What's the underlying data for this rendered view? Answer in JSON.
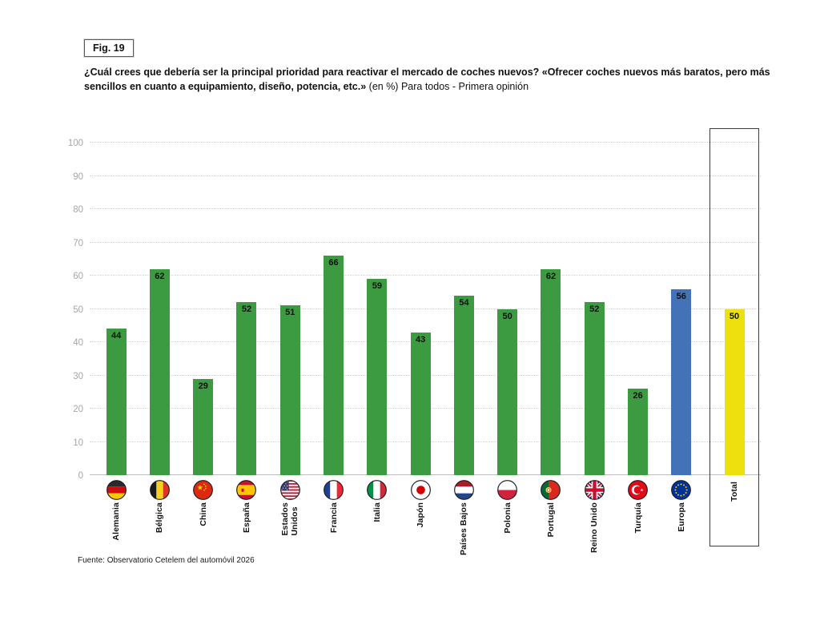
{
  "figure_label": "Fig. 19",
  "title_bold": "¿Cuál crees que debería ser la principal prioridad para reactivar el mercado de coches nuevos? «Ofrecer coches nuevos más baratos, pero más sencillos en cuanto a equipamiento, diseño, potencia, etc.»",
  "title_rest": "(en %) Para todos - Primera opinión",
  "source": "Fuente: Observatorio Cetelem del automóvil 2026",
  "chart_data": {
    "type": "bar",
    "unit": "%",
    "ylim": [
      0,
      100
    ],
    "yticks": [
      0,
      10,
      20,
      30,
      40,
      50,
      60,
      70,
      80,
      90,
      100
    ],
    "grid": "horizontal-dotted",
    "legend": "none",
    "value_labels": "inside-top",
    "categories": [
      "Alemania",
      "Bélgica",
      "China",
      "España",
      "Estados Unidos",
      "Francia",
      "Italia",
      "Japón",
      "Países Bajos",
      "Polonia",
      "Portugal",
      "Reino Unido",
      "Turquía",
      "Europa",
      "Total"
    ],
    "values": [
      44,
      62,
      29,
      52,
      51,
      66,
      59,
      43,
      54,
      50,
      62,
      52,
      26,
      56,
      50
    ],
    "colors": {
      "country": "#3C9B40",
      "europe": "#4472B8",
      "total": "#EDE00E",
      "grid": "#d2d2d2",
      "tick_text": "#a6a6a6"
    },
    "bars": [
      {
        "label": "Alemania",
        "value": 44,
        "color": "#3C9B40",
        "flag": "germany"
      },
      {
        "label": "Bélgica",
        "value": 62,
        "color": "#3C9B40",
        "flag": "belgium"
      },
      {
        "label": "China",
        "value": 29,
        "color": "#3C9B40",
        "flag": "china"
      },
      {
        "label": "España",
        "value": 52,
        "color": "#3C9B40",
        "flag": "spain"
      },
      {
        "label": "Estados\nUnidos",
        "value": 51,
        "color": "#3C9B40",
        "flag": "usa"
      },
      {
        "label": "Francia",
        "value": 66,
        "color": "#3C9B40",
        "flag": "france"
      },
      {
        "label": "Italia",
        "value": 59,
        "color": "#3C9B40",
        "flag": "italy"
      },
      {
        "label": "Japón",
        "value": 43,
        "color": "#3C9B40",
        "flag": "japan"
      },
      {
        "label": "Países Bajos",
        "value": 54,
        "color": "#3C9B40",
        "flag": "netherlands"
      },
      {
        "label": "Polonia",
        "value": 50,
        "color": "#3C9B40",
        "flag": "poland"
      },
      {
        "label": "Portugal",
        "value": 62,
        "color": "#3C9B40",
        "flag": "portugal"
      },
      {
        "label": "Reino Unido",
        "value": 52,
        "color": "#3C9B40",
        "flag": "uk"
      },
      {
        "label": "Turquía",
        "value": 26,
        "color": "#3C9B40",
        "flag": "turkey"
      },
      {
        "label": "Europa",
        "value": 56,
        "color": "#4472B8",
        "flag": "eu"
      },
      {
        "label": "Total",
        "value": 50,
        "color": "#EDE00E",
        "flag": null,
        "boxed": true
      }
    ]
  }
}
